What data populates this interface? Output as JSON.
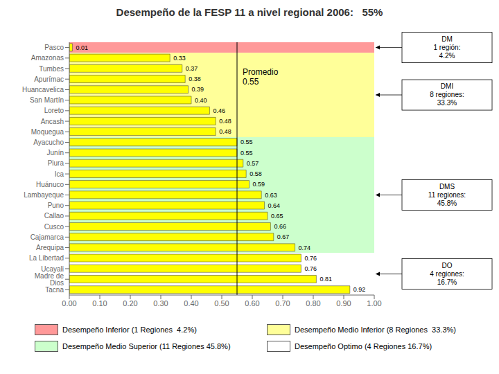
{
  "chart_data": {
    "type": "bar",
    "orientation": "horizontal",
    "title": "Desempeño de la FESP 11 a nivel regional 2006:   55%",
    "categories": [
      "Pasco",
      "Amazonas",
      "Tumbes",
      "Apurímac",
      "Huancavelica",
      "San Martín",
      "Loreto",
      "Ancash",
      "Moquegua",
      "Ayacucho",
      "Junín",
      "Piura",
      "Ica",
      "Huánuco",
      "Lambayeque",
      "Puno",
      "Callao",
      "Cusco",
      "Cajamarca",
      "Arequipa",
      "La Libertad",
      "Ucayali",
      "Madre de Dios",
      "Tacna"
    ],
    "values": [
      0.01,
      0.33,
      0.37,
      0.38,
      0.39,
      0.4,
      0.46,
      0.48,
      0.48,
      0.55,
      0.55,
      0.57,
      0.58,
      0.59,
      0.63,
      0.64,
      0.65,
      0.66,
      0.67,
      0.74,
      0.76,
      0.76,
      0.81,
      0.92
    ],
    "value_labels": [
      "0.01",
      "0.33",
      "0.37",
      "0.38",
      "0.39",
      "0.40",
      "0.46",
      "0.48",
      "0.48",
      "0.55",
      "0.55",
      "0.57",
      "0.58",
      "0.59",
      "0.63",
      "0.64",
      "0.65",
      "0.66",
      "0.67",
      "0.74",
      "0.76",
      "0.76",
      "0.81",
      "0.92"
    ],
    "data_labels": true,
    "color": "#FFFF00",
    "xlim": [
      0,
      1.0
    ],
    "xticks": [
      {
        "value": 0.0,
        "label": "0.00"
      },
      {
        "value": 0.1,
        "label": "0.10"
      },
      {
        "value": 0.2,
        "label": "0.20"
      },
      {
        "value": 0.3,
        "label": "0.30"
      },
      {
        "value": 0.4,
        "label": "0.40"
      },
      {
        "value": 0.5,
        "label": "0.50"
      },
      {
        "value": 0.6,
        "label": "0.60"
      },
      {
        "value": 0.7,
        "label": "0.70"
      },
      {
        "value": 0.8,
        "label": "0.80"
      },
      {
        "value": 0.9,
        "label": "0.90"
      },
      {
        "value": 1.0,
        "label": "1.00"
      }
    ],
    "grid": false,
    "legend": "bottom",
    "reference_line": {
      "value": 0.55,
      "label": "Promedio\n0.55"
    },
    "groups": [
      {
        "name": "Desempeño Inferior (1 Regiones  4.2%)",
        "color": "#FF9999",
        "annotation": "DM\n1 región:\n4.2%",
        "first": "Pasco",
        "last": "Pasco"
      },
      {
        "name": "Desempeño Medio Inferior (8 Regiones  33.3%)",
        "color": "#FFFF99",
        "annotation": "DMI\n8 regiones:\n33.3%",
        "first": "Amazonas",
        "last": "Moquegua"
      },
      {
        "name": "Desempeño Medio Superior (11 Regiones 45.8%)",
        "color": "#CCFFCC",
        "annotation": "DMS\n11 regiones:\n45.8%",
        "first": "Ayacucho",
        "last": "Arequipa"
      },
      {
        "name": "Desempeño Optimo (4 Regiones 16.7%)",
        "color": "#FFFFFF",
        "annotation": "DO\n4 regiones:\n16.7%",
        "first": "La Libertad",
        "last": "Tacna"
      }
    ]
  }
}
